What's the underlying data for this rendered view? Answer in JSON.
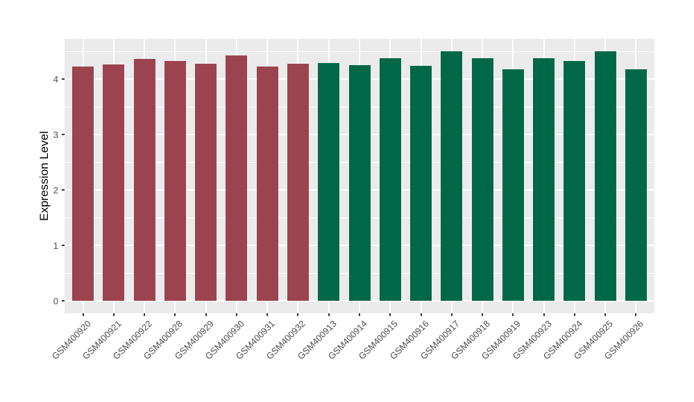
{
  "chart_data": {
    "type": "bar",
    "title": "",
    "xlabel": "",
    "ylabel": "Expression Level",
    "ylim": [
      0,
      4.5
    ],
    "yticks": [
      0,
      1,
      2,
      3,
      4
    ],
    "yticks_minor": [
      0.5,
      1.5,
      2.5,
      3.5,
      4.5
    ],
    "grid": "on",
    "legend": "none",
    "panel_bg": "#EBEBEB",
    "grid_color": "#FFFFFF",
    "tick_color": "#333333",
    "axis_text_color": "#4D4D4D",
    "categories": [
      "GSM400920",
      "GSM400921",
      "GSM400922",
      "GSM400928",
      "GSM400929",
      "GSM400930",
      "GSM400931",
      "GSM400932",
      "GSM400913",
      "GSM400914",
      "GSM400915",
      "GSM400916",
      "GSM400917",
      "GSM400918",
      "GSM400919",
      "GSM400923",
      "GSM400924",
      "GSM400925",
      "GSM400926"
    ],
    "series": [
      {
        "name": "Expression Level",
        "values": [
          4.23,
          4.26,
          4.36,
          4.32,
          4.28,
          4.43,
          4.23,
          4.27,
          4.29,
          4.25,
          4.37,
          4.24,
          4.5,
          4.37,
          4.18,
          4.38,
          4.33,
          4.5,
          4.17
        ]
      }
    ],
    "groups": [
      "group1",
      "group1",
      "group1",
      "group1",
      "group1",
      "group1",
      "group1",
      "group1",
      "group2",
      "group2",
      "group2",
      "group2",
      "group2",
      "group2",
      "group2",
      "group2",
      "group2",
      "group2",
      "group2"
    ],
    "group_colors": {
      "group1": "#9B4450",
      "group2": "#006846"
    }
  }
}
